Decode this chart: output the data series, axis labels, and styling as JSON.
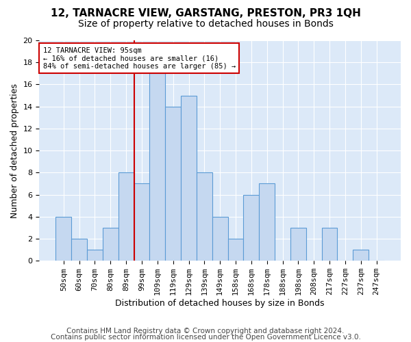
{
  "title": "12, TARNACRE VIEW, GARSTANG, PRESTON, PR3 1QH",
  "subtitle": "Size of property relative to detached houses in Bonds",
  "xlabel": "Distribution of detached houses by size in Bonds",
  "ylabel": "Number of detached properties",
  "bin_labels": [
    "50sqm",
    "60sqm",
    "70sqm",
    "80sqm",
    "89sqm",
    "99sqm",
    "109sqm",
    "119sqm",
    "129sqm",
    "139sqm",
    "149sqm",
    "158sqm",
    "168sqm",
    "178sqm",
    "188sqm",
    "198sqm",
    "208sqm",
    "217sqm",
    "227sqm",
    "237sqm",
    "247sqm"
  ],
  "bar_values": [
    4,
    2,
    1,
    3,
    8,
    7,
    17,
    14,
    15,
    8,
    4,
    2,
    6,
    7,
    0,
    3,
    0,
    3,
    0,
    1,
    0
  ],
  "bar_color": "#c5d8f0",
  "bar_edge_color": "#5b9bd5",
  "vline_x": 4.5,
  "vline_color": "#cc0000",
  "annotation_title": "12 TARNACRE VIEW: 95sqm",
  "annotation_line1": "← 16% of detached houses are smaller (16)",
  "annotation_line2": "84% of semi-detached houses are larger (85) →",
  "annotation_box_color": "#cc0000",
  "ylim": [
    0,
    20
  ],
  "yticks": [
    0,
    2,
    4,
    6,
    8,
    10,
    12,
    14,
    16,
    18,
    20
  ],
  "footer1": "Contains HM Land Registry data © Crown copyright and database right 2024.",
  "footer2": "Contains public sector information licensed under the Open Government Licence v3.0.",
  "background_color": "#dce9f8",
  "fig_background": "#ffffff",
  "title_fontsize": 11,
  "subtitle_fontsize": 10,
  "axis_label_fontsize": 9,
  "tick_fontsize": 8,
  "footer_fontsize": 7.5
}
